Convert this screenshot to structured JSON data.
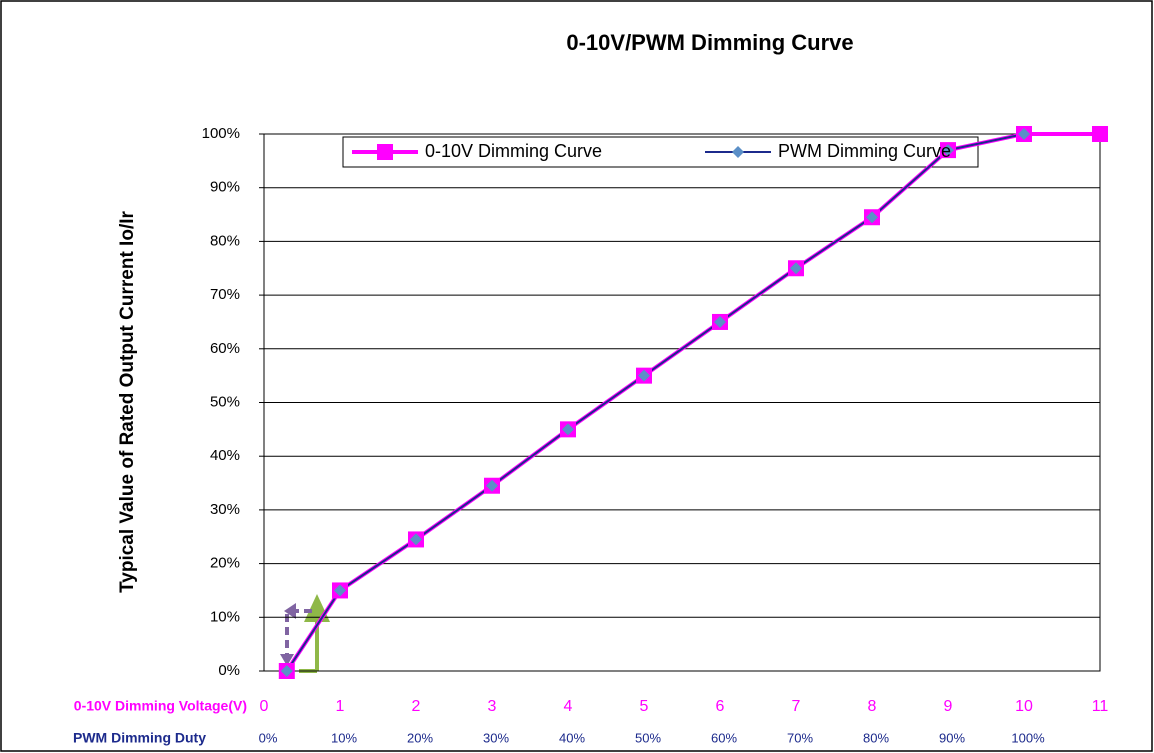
{
  "chart_data": {
    "type": "line",
    "title": "0-10V/PWM Dimming Curve",
    "ylabel": "Typical Value of Rated Output Current Io/Ir",
    "xlabel": "0-10V Dimming Voltage(V)",
    "x2label": "PWM Dimming Duty",
    "xlim": [
      0,
      11
    ],
    "xticks": [
      0,
      1,
      2,
      3,
      4,
      5,
      6,
      7,
      8,
      9,
      10,
      11
    ],
    "x2lim": [
      0,
      110
    ],
    "x2ticks": [
      {
        "value": 0,
        "label": "0%"
      },
      {
        "value": 10,
        "label": "10%"
      },
      {
        "value": 20,
        "label": "20%"
      },
      {
        "value": 30,
        "label": "30%"
      },
      {
        "value": 40,
        "label": "40%"
      },
      {
        "value": 50,
        "label": "50%"
      },
      {
        "value": 60,
        "label": "60%"
      },
      {
        "value": 70,
        "label": "70%"
      },
      {
        "value": 80,
        "label": "80%"
      },
      {
        "value": 90,
        "label": "90%"
      },
      {
        "value": 100,
        "label": "100%"
      }
    ],
    "ylim": [
      0,
      100
    ],
    "yticks": [
      {
        "value": 0,
        "label": "0%"
      },
      {
        "value": 10,
        "label": "10%"
      },
      {
        "value": 20,
        "label": "20%"
      },
      {
        "value": 30,
        "label": "30%"
      },
      {
        "value": 40,
        "label": "40%"
      },
      {
        "value": 50,
        "label": "50%"
      },
      {
        "value": 60,
        "label": "60%"
      },
      {
        "value": 70,
        "label": "70%"
      },
      {
        "value": 80,
        "label": "80%"
      },
      {
        "value": 90,
        "label": "90%"
      },
      {
        "value": 100,
        "label": "100%"
      }
    ],
    "grid": true,
    "legend": "top",
    "series": [
      {
        "name": "0-10V Dimming Curve",
        "color": "#ff00ff",
        "marker": "square",
        "x": [
          0.3,
          1,
          2,
          3,
          4,
          5,
          6,
          7,
          8,
          9,
          10,
          11
        ],
        "values": [
          0,
          15,
          24.5,
          34.5,
          45,
          55,
          65,
          75,
          84.5,
          97,
          100,
          100
        ]
      },
      {
        "name": "PWM Dimming Curve",
        "color": "#1c2a8c",
        "marker_color": "#5b8fc7",
        "marker": "diamond",
        "x": [
          0.3,
          1,
          2,
          3,
          4,
          5,
          6,
          7,
          8,
          9,
          10
        ],
        "values": [
          0,
          15,
          24.5,
          34.5,
          45,
          55,
          65,
          75,
          84.5,
          97,
          100
        ]
      }
    ]
  }
}
